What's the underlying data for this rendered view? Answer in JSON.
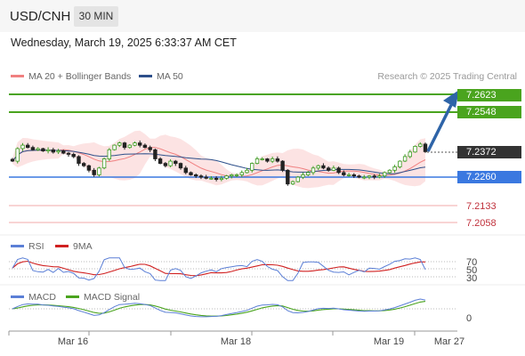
{
  "header": {
    "symbol": "USD/CNH",
    "timeframe": "30 MIN",
    "timestamp": "Wednesday, March 19, 2025 6:33:37 AM CET",
    "credit": "Research © 2025 Trading Central"
  },
  "legend": {
    "price": [
      {
        "label": "MA 20 + Bollinger Bands",
        "color": "#f08080"
      },
      {
        "label": "MA 50",
        "color": "#2d4f8a"
      }
    ],
    "rsi": [
      {
        "label": "RSI",
        "color": "#5b7fd6"
      },
      {
        "label": "9MA",
        "color": "#d02020"
      }
    ],
    "macd": [
      {
        "label": "MACD",
        "color": "#5b7fd6"
      },
      {
        "label": "MACD Signal",
        "color": "#4aa41e"
      }
    ]
  },
  "colors": {
    "resistance": "#4aa41e",
    "support": "#3a78e0",
    "current": "#333333",
    "target_text": "#c0303b",
    "arrow": "#2e64a8",
    "band": "#fbdada"
  },
  "levels": {
    "resistance_1": "7.2623",
    "resistance_2": "7.2548",
    "current": "7.2372",
    "support_1": "7.2260",
    "support_2": "7.2133",
    "support_3": "7.2058"
  },
  "rsi_levels": [
    "70",
    "50",
    "30"
  ],
  "macd_level": "0",
  "x_axis": [
    "Mar 16",
    "Mar 18",
    "Mar 19",
    "Mar 27"
  ],
  "chart_data": {
    "type": "candlestick",
    "instrument": "USD/CNH",
    "interval": "30 MIN",
    "price_levels": {
      "resistance": [
        7.2623,
        7.2548
      ],
      "current": 7.2372,
      "support": [
        7.226,
        7.2133,
        7.2058
      ]
    },
    "close_path": [
      7.233,
      7.2385,
      7.24,
      7.239,
      7.238,
      7.2385,
      7.2375,
      7.238,
      7.237,
      7.2375,
      7.2365,
      7.236,
      7.235,
      7.232,
      7.231,
      7.229,
      7.227,
      7.23,
      7.234,
      7.238,
      7.24,
      7.241,
      7.239,
      7.24,
      7.241,
      7.24,
      7.239,
      7.238,
      7.234,
      7.232,
      7.231,
      7.233,
      7.232,
      7.23,
      7.228,
      7.227,
      7.2265,
      7.226,
      7.2255,
      7.2255,
      7.225,
      7.2255,
      7.2265,
      7.227,
      7.227,
      7.228,
      7.229,
      7.232,
      7.234,
      7.234,
      7.233,
      7.234,
      7.233,
      7.229,
      7.223,
      7.224,
      7.226,
      7.227,
      7.228,
      7.23,
      7.231,
      7.23,
      7.229,
      7.23,
      7.228,
      7.227,
      7.227,
      7.2265,
      7.226,
      7.226,
      7.2265,
      7.226,
      7.2265,
      7.228,
      7.229,
      7.2305,
      7.233,
      7.235,
      7.237,
      7.2395,
      7.2405,
      7.2372
    ],
    "rsi": {
      "levels": [
        70,
        50,
        30
      ]
    },
    "macd": {
      "zero_line": 0
    },
    "x_tick_labels": [
      "Mar 16",
      "Mar 18",
      "Mar 19",
      "Mar 27"
    ],
    "forecast_target": 7.2623
  }
}
